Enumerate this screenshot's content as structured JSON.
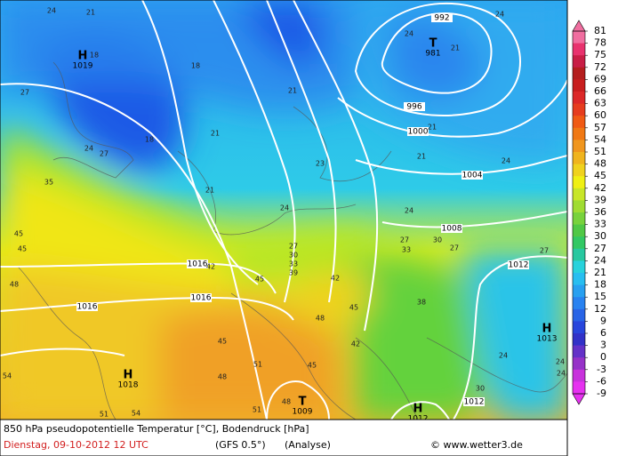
{
  "colorbar": {
    "ticks": [
      81,
      78,
      75,
      72,
      69,
      66,
      63,
      60,
      57,
      54,
      51,
      48,
      45,
      42,
      39,
      36,
      33,
      30,
      27,
      24,
      21,
      18,
      15,
      12,
      9,
      6,
      3,
      0,
      -3,
      -6,
      -9
    ],
    "colors": [
      "#f06ea0",
      "#e8326e",
      "#c81e46",
      "#b41e1e",
      "#c81e1e",
      "#dc2828",
      "#e63c1e",
      "#f05a14",
      "#f07814",
      "#f0961e",
      "#f0b41e",
      "#f0d21e",
      "#f0f014",
      "#c8e628",
      "#a0dc32",
      "#78d23c",
      "#50c846",
      "#32c864",
      "#28c8a0",
      "#28d2dc",
      "#28bef0",
      "#28a0f0",
      "#2882f0",
      "#2864e6",
      "#2846dc",
      "#3232c8",
      "#6432c8",
      "#9632c8",
      "#c832dc",
      "#e632f0"
    ]
  },
  "pressure_centers": [
    {
      "symbol": "H",
      "value": 1019
    },
    {
      "symbol": "T",
      "value": 981
    },
    {
      "symbol": "H",
      "value": 1013
    },
    {
      "symbol": "H",
      "value": 1018
    },
    {
      "symbol": "T",
      "value": 1009
    },
    {
      "symbol": "H",
      "value": 1012
    }
  ],
  "isobar_labels": [
    992,
    996,
    1000,
    1004,
    1008,
    1012,
    1016,
    1016,
    1016,
    1012
  ],
  "temperature_labels": [
    24,
    21,
    18,
    18,
    21,
    27,
    24,
    27,
    18,
    21,
    21,
    35,
    23,
    24,
    27,
    30,
    33,
    39,
    42,
    45,
    42,
    45,
    45,
    48,
    45,
    48,
    42,
    45,
    51,
    48,
    45,
    48,
    51,
    54,
    51,
    54,
    38,
    24,
    24,
    24,
    27,
    27,
    30,
    27,
    33,
    24,
    24,
    24,
    24,
    21,
    21,
    21,
    30
  ],
  "footer": {
    "line1": "850 hPa pseudopotentielle Temperatur [°C], Bodendruck [hPa]",
    "date": "Dienstag, 09-10-2012  12 UTC",
    "model": "(GFS 0.5°)",
    "analysis": "(Analyse)",
    "copyright": "© www.wetter3.de"
  }
}
